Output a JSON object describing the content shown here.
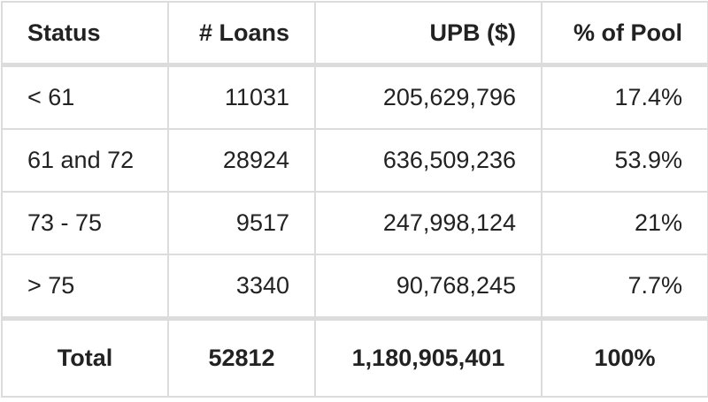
{
  "table": {
    "headers": {
      "status": "Status",
      "loans": "# Loans",
      "upb": "UPB ($)",
      "pct": "% of Pool"
    },
    "rows": [
      {
        "status": "< 61",
        "loans": "11031",
        "upb": "205,629,796",
        "pct": "17.4%"
      },
      {
        "status": "61 and 72",
        "loans": "28924",
        "upb": "636,509,236",
        "pct": "53.9%"
      },
      {
        "status": "73 - 75",
        "loans": "9517",
        "upb": "247,998,124",
        "pct": "21%"
      },
      {
        "status": "> 75",
        "loans": "3340",
        "upb": "90,768,245",
        "pct": "7.7%"
      }
    ],
    "total": {
      "status": "Total",
      "loans": "52812",
      "upb": "1,180,905,401",
      "pct": "100%"
    }
  }
}
